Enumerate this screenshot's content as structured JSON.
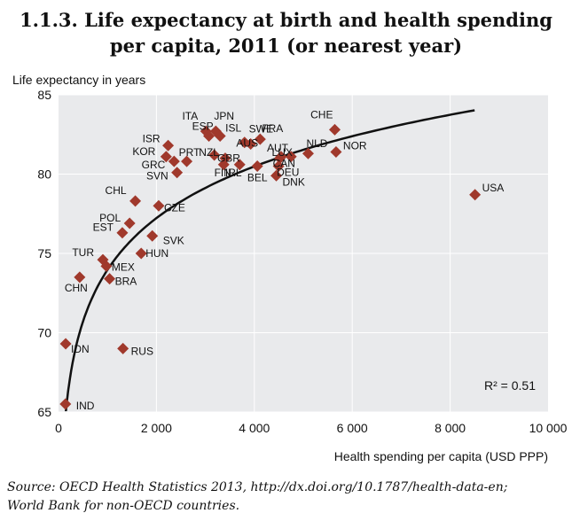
{
  "title_line1": "1.1.3.  Life expectancy at birth and health spending",
  "title_line2": "per capita, 2011 (or nearest year)",
  "source_label": "Source:",
  "source_line1": "OECD Health Statistics 2013, http://dx.doi.org/10.1787/health-data-en;",
  "source_line2": "World Bank for non-OECD countries.",
  "colors": {
    "marker": "#a0392c",
    "plot_bg": "#e9eaec",
    "grid": "#ffffff",
    "curve": "#111111"
  },
  "chart_data": {
    "type": "scatter",
    "title": "Life expectancy at birth and health spending per capita, 2011 (or nearest year)",
    "xlabel": "Health spending per capita (USD PPP)",
    "ylabel": "Life expectancy in years",
    "xlim": [
      0,
      10000
    ],
    "ylim": [
      65,
      85
    ],
    "xticks": [
      0,
      2000,
      4000,
      6000,
      8000,
      10000
    ],
    "xtick_labels": [
      "0",
      "2 000",
      "4 000",
      "6 000",
      "8 000",
      "10 000"
    ],
    "yticks": [
      65,
      70,
      75,
      80,
      85
    ],
    "ytick_labels": [
      "65",
      "70",
      "75",
      "80",
      "85"
    ],
    "annotation": "R² = 0.51",
    "trend": {
      "type": "logarithmic",
      "a": 41.5,
      "b": 4.7,
      "x_range": [
        150,
        8500
      ]
    },
    "points": [
      {
        "label": "ITA",
        "x": 3012,
        "y": 82.7
      },
      {
        "label": "JPN",
        "x": 3213,
        "y": 82.7
      },
      {
        "label": "ISL",
        "x": 3300,
        "y": 82.4
      },
      {
        "label": "SWE",
        "x": 3925,
        "y": 81.9
      },
      {
        "label": "CHE",
        "x": 5643,
        "y": 82.8
      },
      {
        "label": "FRA",
        "x": 4118,
        "y": 82.2
      },
      {
        "label": "ESP",
        "x": 3072,
        "y": 82.4
      },
      {
        "label": "ISR",
        "x": 2239,
        "y": 81.8
      },
      {
        "label": "AUS",
        "x": 3800,
        "y": 82.0
      },
      {
        "label": "NLD",
        "x": 5099,
        "y": 81.3
      },
      {
        "label": "NOR",
        "x": 5669,
        "y": 81.4
      },
      {
        "label": "KOR",
        "x": 2198,
        "y": 81.1
      },
      {
        "label": "PRT",
        "x": 2619,
        "y": 80.8
      },
      {
        "label": "NZL",
        "x": 3182,
        "y": 81.2
      },
      {
        "label": "AUT",
        "x": 4546,
        "y": 81.1
      },
      {
        "label": "GRC",
        "x": 2361,
        "y": 80.8
      },
      {
        "label": "GBR",
        "x": 3405,
        "y": 81.0
      },
      {
        "label": "LUX",
        "x": 4750,
        "y": 81.1
      },
      {
        "label": "CAN",
        "x": 4522,
        "y": 81.0
      },
      {
        "label": "FIN",
        "x": 3374,
        "y": 80.6
      },
      {
        "label": "IRL",
        "x": 3700,
        "y": 80.6
      },
      {
        "label": "DEU",
        "x": 4495,
        "y": 80.5
      },
      {
        "label": "SVN",
        "x": 2421,
        "y": 80.1
      },
      {
        "label": "BEL",
        "x": 4061,
        "y": 80.5
      },
      {
        "label": "DNK",
        "x": 4448,
        "y": 79.9
      },
      {
        "label": "USA",
        "x": 8508,
        "y": 78.7
      },
      {
        "label": "CHL",
        "x": 1568,
        "y": 78.3
      },
      {
        "label": "CZE",
        "x": 2046,
        "y": 78.0
      },
      {
        "label": "POL",
        "x": 1452,
        "y": 76.9
      },
      {
        "label": "EST",
        "x": 1303,
        "y": 76.3
      },
      {
        "label": "SVK",
        "x": 1915,
        "y": 76.1
      },
      {
        "label": "HUN",
        "x": 1689,
        "y": 75.0
      },
      {
        "label": "TUR",
        "x": 906,
        "y": 74.6
      },
      {
        "label": "MEX",
        "x": 977,
        "y": 74.2
      },
      {
        "label": "BRA",
        "x": 1043,
        "y": 73.4
      },
      {
        "label": "CHN",
        "x": 432,
        "y": 73.5
      },
      {
        "label": "IDN",
        "x": 146,
        "y": 69.3
      },
      {
        "label": "RUS",
        "x": 1316,
        "y": 69.0
      },
      {
        "label": "IND",
        "x": 141,
        "y": 65.5
      }
    ]
  }
}
